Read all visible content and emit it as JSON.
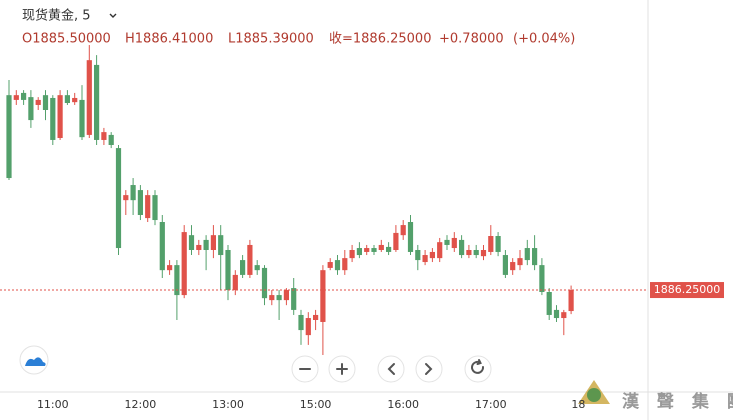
{
  "chart_data": {
    "type": "candlestick",
    "title": "现货黄金, 5",
    "ohlc_labels": [
      "O1885.50000",
      "H1886.41000",
      "L1885.39000",
      "收=1886.25000",
      "+0.78000",
      "(+0.04%)"
    ],
    "last_price": {
      "value": 1886.25,
      "label": "1886.25000"
    },
    "watermark": "漢 聲 集 團",
    "up_color": "#e0524a",
    "down_color": "#53a06b",
    "ylim": [
      1882.68,
      1895.18
    ],
    "categories": [
      null,
      null,
      null,
      null,
      null,
      null,
      "11:00",
      null,
      null,
      null,
      null,
      null,
      null,
      null,
      null,
      null,
      null,
      null,
      "12:00",
      null,
      null,
      null,
      null,
      null,
      null,
      null,
      null,
      null,
      null,
      null,
      "13:00",
      null,
      null,
      null,
      null,
      null,
      null,
      null,
      null,
      null,
      null,
      null,
      "15:00",
      null,
      null,
      null,
      null,
      null,
      null,
      null,
      null,
      null,
      null,
      null,
      "16:00",
      null,
      null,
      null,
      null,
      null,
      null,
      null,
      null,
      null,
      null,
      null,
      "17:00",
      null,
      null,
      null,
      null,
      null,
      null,
      null,
      null,
      null,
      null,
      null,
      "18"
    ],
    "open": [
      1893.21,
      1893.04,
      1893.29,
      1893.14,
      1892.86,
      1893.21,
      1893.11,
      1891.68,
      1893.21,
      1892.96,
      1893.04,
      1891.79,
      1894.29,
      1891.61,
      1891.79,
      1891.32,
      1889.46,
      1890.0,
      1889.82,
      1888.82,
      1889.64,
      1888.68,
      1886.96,
      1887.14,
      1886.07,
      1888.21,
      1887.68,
      1888.04,
      1887.68,
      1888.21,
      1887.68,
      1886.25,
      1887.32,
      1886.79,
      1887.14,
      1887.04,
      1885.89,
      1886.07,
      1885.89,
      1886.32,
      1885.36,
      1884.64,
      1885.18,
      1885.11,
      1887.04,
      1887.32,
      1886.96,
      1887.39,
      1887.75,
      1887.61,
      1887.75,
      1887.68,
      1887.79,
      1887.68,
      1888.21,
      1888.68,
      1887.68,
      1887.25,
      1887.39,
      1887.39,
      1888.04,
      1887.75,
      1888.04,
      1887.5,
      1887.68,
      1887.46,
      1887.61,
      1888.18,
      1887.5,
      1886.96,
      1887.14,
      1887.75,
      1887.75,
      1887.14,
      1886.18,
      1885.54,
      1885.25,
      1885.5,
      null
    ],
    "high": [
      1893.75,
      1893.39,
      1893.39,
      1893.39,
      1893.14,
      1893.39,
      1893.21,
      1893.39,
      1893.39,
      1893.29,
      1893.57,
      1895.0,
      1894.64,
      1892.04,
      1891.89,
      1891.43,
      1889.82,
      1890.25,
      1890.0,
      1889.82,
      1889.82,
      1888.93,
      1887.32,
      1887.32,
      1888.57,
      1888.57,
      1888.04,
      1888.21,
      1888.57,
      1888.57,
      1887.86,
      1886.96,
      1887.5,
      1888.04,
      1887.32,
      1887.14,
      1886.25,
      1886.25,
      1886.32,
      1886.68,
      1885.54,
      1885.46,
      1885.54,
      1887.14,
      1887.39,
      1887.5,
      1887.68,
      1887.86,
      1887.96,
      1887.86,
      1887.86,
      1888.04,
      1887.96,
      1888.57,
      1888.75,
      1888.93,
      1887.86,
      1887.68,
      1887.75,
      1888.11,
      1888.21,
      1888.32,
      1888.21,
      1887.86,
      1887.86,
      1887.86,
      1888.57,
      1888.32,
      1887.68,
      1887.39,
      1887.68,
      1888.04,
      1888.21,
      1887.39,
      1886.32,
      1885.71,
      1885.54,
      1886.41,
      null
    ],
    "low": [
      1890.18,
      1892.86,
      1892.86,
      1892.04,
      1892.68,
      1892.32,
      1891.43,
      1891.61,
      1892.86,
      1892.86,
      1891.61,
      1891.68,
      1891.43,
      1891.43,
      1891.32,
      1887.5,
      1888.93,
      1888.93,
      1888.75,
      1888.68,
      1888.57,
      1886.68,
      1886.79,
      1885.18,
      1885.96,
      1887.5,
      1887.5,
      1886.96,
      1887.39,
      1886.25,
      1885.89,
      1886.07,
      1886.68,
      1886.68,
      1886.79,
      1885.71,
      1885.71,
      1885.18,
      1885.71,
      1885.36,
      1884.29,
      1884.29,
      1884.82,
      1883.93,
      1886.96,
      1886.79,
      1886.79,
      1887.25,
      1887.39,
      1887.5,
      1887.5,
      1887.61,
      1887.5,
      1887.61,
      1888.04,
      1887.5,
      1886.96,
      1887.14,
      1887.25,
      1887.25,
      1887.68,
      1887.61,
      1887.39,
      1887.39,
      1887.39,
      1887.32,
      1887.5,
      1887.46,
      1886.68,
      1886.79,
      1886.96,
      1887.14,
      1886.96,
      1886.07,
      1885.18,
      1885.11,
      1884.64,
      1885.39,
      null
    ],
    "close": [
      1890.25,
      1893.21,
      1893.04,
      1892.32,
      1893.04,
      1892.68,
      1891.61,
      1893.21,
      1892.93,
      1893.11,
      1891.71,
      1894.46,
      1891.61,
      1891.89,
      1891.43,
      1887.75,
      1889.64,
      1889.46,
      1888.93,
      1889.64,
      1888.75,
      1886.96,
      1887.14,
      1886.07,
      1888.32,
      1887.68,
      1887.86,
      1887.68,
      1888.21,
      1887.5,
      1886.25,
      1886.79,
      1886.79,
      1887.86,
      1886.96,
      1885.96,
      1886.07,
      1885.89,
      1886.25,
      1885.54,
      1884.82,
      1885.25,
      1885.36,
      1886.96,
      1887.25,
      1886.96,
      1887.39,
      1887.68,
      1887.5,
      1887.75,
      1887.61,
      1887.86,
      1887.61,
      1888.29,
      1888.57,
      1887.61,
      1887.32,
      1887.5,
      1887.61,
      1887.96,
      1887.86,
      1888.11,
      1887.5,
      1887.68,
      1887.5,
      1887.68,
      1888.18,
      1887.61,
      1886.79,
      1887.25,
      1887.39,
      1887.32,
      1887.14,
      1886.18,
      1885.36,
      1885.25,
      1885.46,
      1886.25,
      null
    ]
  }
}
